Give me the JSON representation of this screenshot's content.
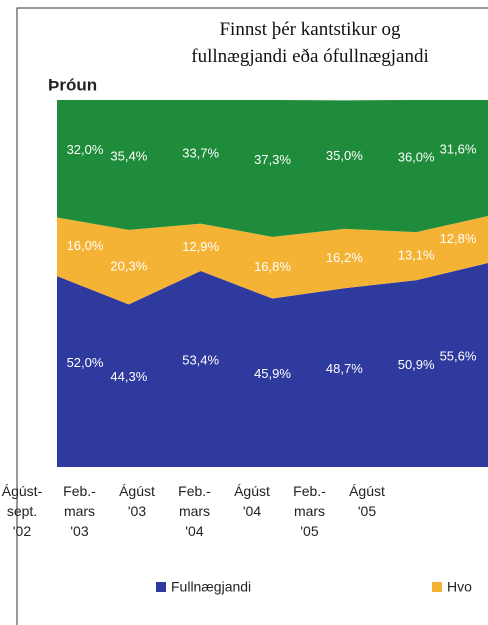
{
  "chart_data": {
    "type": "stacked_area",
    "title": "Finnst þér kantstikur og\nfullnægjandi eða ófullnægjandi",
    "subtitle": "Þróun",
    "categories": [
      "Ágúst-\nsept.\n'02",
      "Feb.-\nmars\n'03",
      "Ágúst\n'03",
      "Feb.-\nmars\n'04",
      "Ágúst\n'04",
      "Feb.-\nmars\n'05",
      "Ágúst\n'05"
    ],
    "ylim": [
      0,
      100
    ],
    "series": [
      {
        "name": "Fullnægjandi",
        "color": "#2e3a9e",
        "values": [
          52.0,
          44.3,
          53.4,
          45.9,
          48.7,
          50.9,
          55.6
        ],
        "value_labels": [
          "52,0%",
          "44,3%",
          "53,4%",
          "45,9%",
          "48,7%",
          "50,9%",
          "55,6%"
        ]
      },
      {
        "name": "Hvo",
        "color": "#f5b335",
        "values": [
          16.0,
          20.3,
          12.9,
          16.8,
          16.2,
          13.1,
          12.8
        ],
        "value_labels": [
          "16,0%",
          "20,3%",
          "12,9%",
          "16,8%",
          "16,2%",
          "13,1%",
          "12,8%"
        ]
      },
      {
        "color": "#1e8c3a",
        "values": [
          32.0,
          35.4,
          33.7,
          37.3,
          35.0,
          36.0,
          31.6
        ],
        "value_labels": [
          "32,0%",
          "35,4%",
          "33,7%",
          "37,3%",
          "35,0%",
          "36,0%",
          "31,6%"
        ]
      }
    ]
  }
}
